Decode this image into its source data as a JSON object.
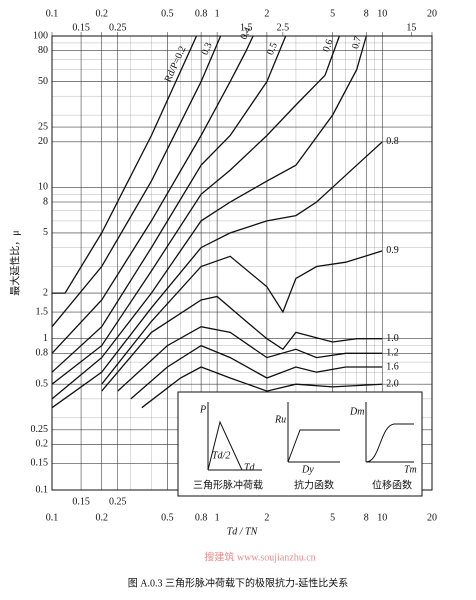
{
  "chart_data": {
    "type": "line",
    "log_x": true,
    "log_y": true,
    "grid": true,
    "color": "#111111",
    "x_label": "Td / TN",
    "y_label": "最大延性比，μ",
    "xlim": [
      0.1,
      20
    ],
    "ylim": [
      0.1,
      100
    ],
    "xticks": [
      0.1,
      0.15,
      0.2,
      0.25,
      0.5,
      0.8,
      1,
      2,
      5,
      8,
      10,
      20
    ],
    "top_xticks": [
      0.1,
      0.15,
      0.2,
      0.25,
      0.5,
      0.8,
      1,
      1.5,
      2,
      2.5,
      5,
      8,
      10,
      15,
      20
    ],
    "yticks": [
      0.1,
      0.15,
      0.2,
      0.25,
      0.5,
      0.8,
      1,
      1.5,
      2,
      5,
      8,
      10,
      20,
      25,
      50,
      80,
      100
    ],
    "series": [
      {
        "name": "Rd/P=0.2",
        "x": [
          0.1,
          0.12,
          0.2,
          0.4,
          0.75
        ],
        "values": [
          2,
          2,
          5,
          22,
          100
        ]
      },
      {
        "name": "0.3",
        "x": [
          0.1,
          0.2,
          0.4,
          0.8,
          1.05
        ],
        "values": [
          1.2,
          3,
          11,
          50,
          100
        ]
      },
      {
        "name": "0.4",
        "x": [
          0.1,
          0.2,
          0.4,
          0.8,
          1.2,
          1.5,
          1.65
        ],
        "values": [
          0.8,
          1.8,
          6,
          22,
          50,
          80,
          100
        ]
      },
      {
        "name": "0.5",
        "x": [
          0.1,
          0.2,
          0.4,
          0.8,
          1.2,
          2,
          2.6
        ],
        "values": [
          0.6,
          1.2,
          4,
          14,
          22,
          50,
          100
        ]
      },
      {
        "name": "0.6",
        "x": [
          0.1,
          0.2,
          0.4,
          0.8,
          1.2,
          2,
          3,
          4.5,
          5.5
        ],
        "values": [
          0.5,
          0.9,
          2.8,
          9,
          13,
          22,
          35,
          55,
          100
        ]
      },
      {
        "name": "0.7",
        "x": [
          0.1,
          0.2,
          0.4,
          0.8,
          1.2,
          2,
          3,
          5,
          7,
          8
        ],
        "values": [
          0.4,
          0.75,
          2,
          6,
          8,
          11,
          14,
          30,
          60,
          100
        ]
      },
      {
        "name": "0.8",
        "x": [
          0.1,
          0.2,
          0.4,
          0.8,
          1.2,
          2,
          3,
          4,
          5,
          7,
          10
        ],
        "values": [
          0.35,
          0.6,
          1.6,
          4,
          5,
          6,
          6.5,
          8,
          10,
          14,
          20
        ]
      },
      {
        "name": "0.9",
        "x": [
          0.2,
          0.4,
          0.8,
          1.2,
          2,
          2.5,
          3,
          4,
          6,
          10
        ],
        "values": [
          0.5,
          1.3,
          3,
          3.5,
          2.2,
          1.5,
          2.5,
          3,
          3.2,
          3.8
        ]
      },
      {
        "name": "1.0",
        "x": [
          0.2,
          0.4,
          0.8,
          1,
          1.5,
          2,
          2.5,
          3,
          5,
          7,
          10
        ],
        "values": [
          0.45,
          1.1,
          1.8,
          1.9,
          1.3,
          1,
          0.85,
          1.1,
          0.95,
          1,
          1
        ]
      },
      {
        "name": "1.2",
        "x": [
          0.25,
          0.5,
          0.8,
          1.2,
          2,
          3,
          4,
          6,
          10
        ],
        "values": [
          0.45,
          0.9,
          1.2,
          1.1,
          0.75,
          0.85,
          0.75,
          0.8,
          0.8
        ]
      },
      {
        "name": "1.6",
        "x": [
          0.3,
          0.5,
          0.8,
          1.2,
          2,
          3,
          4,
          6,
          10
        ],
        "values": [
          0.4,
          0.65,
          0.9,
          0.75,
          0.55,
          0.65,
          0.6,
          0.65,
          0.65
        ]
      },
      {
        "name": "2.0",
        "x": [
          0.35,
          0.6,
          0.8,
          1.2,
          2,
          3,
          5,
          10
        ],
        "values": [
          0.35,
          0.55,
          0.65,
          0.55,
          0.45,
          0.5,
          0.48,
          0.5
        ]
      }
    ],
    "inset": {
      "p": "P",
      "td_half": "Td/2",
      "td": "Td",
      "ru": "Ru",
      "dy": "Dy",
      "dm": "Dm",
      "tm": "Tm",
      "caption_load": "三角形脉冲荷载",
      "caption_resistance": "抗力函数",
      "caption_displacement": "位移函数"
    }
  },
  "watermark": "搜建筑 www.soujianzhu.cn",
  "caption": "图 A.0.3   三角形脉冲荷载下的极限抗力-延性比关系"
}
